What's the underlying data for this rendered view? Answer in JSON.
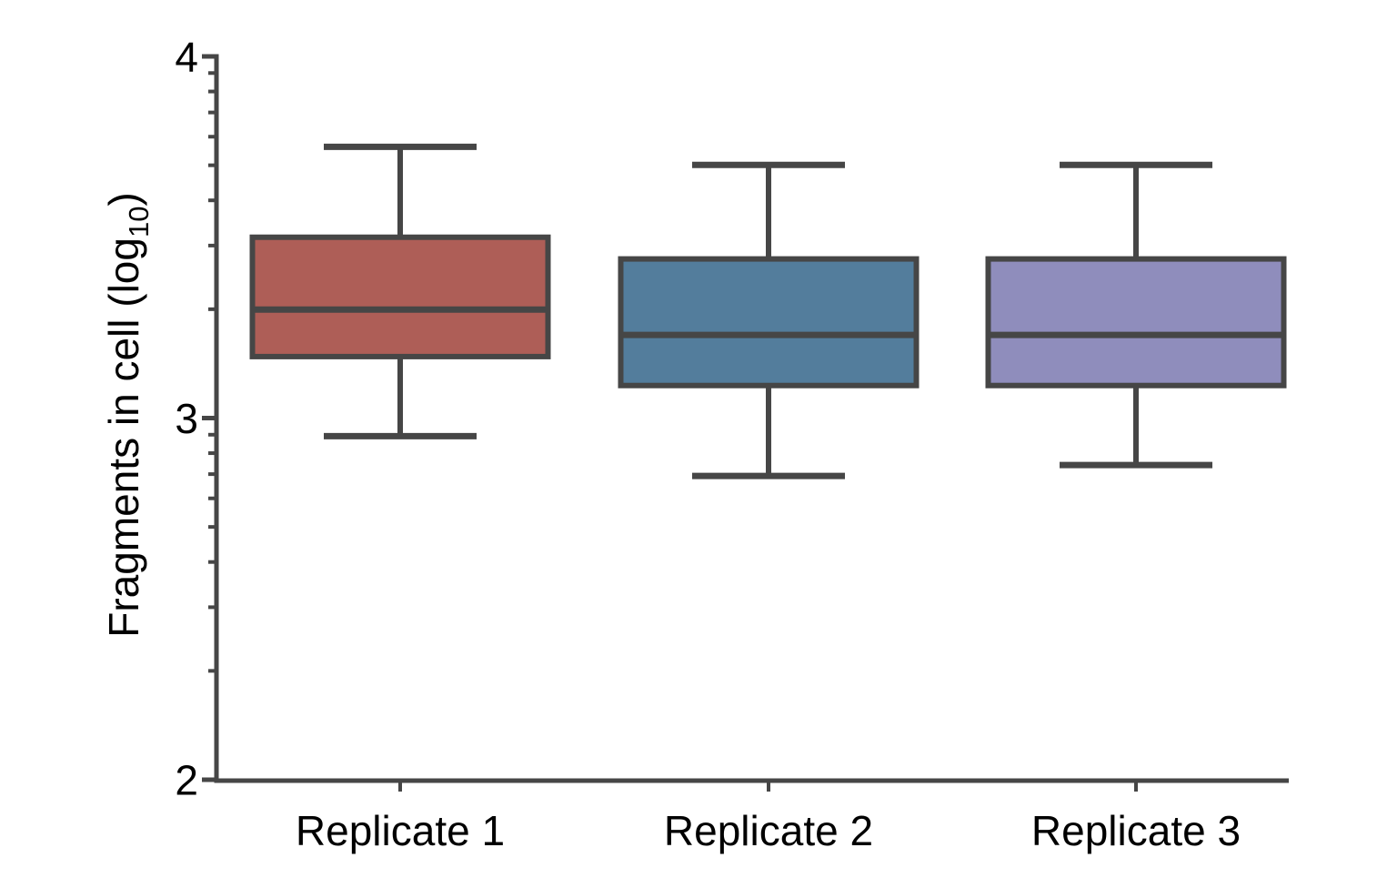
{
  "figure": {
    "background": "#ffffff",
    "axis_color": "#464646",
    "text_color": "#000000"
  },
  "chart_data": {
    "type": "boxplot",
    "title": "",
    "xlabel": "",
    "ylabel": "Fragments in cell (log10)",
    "ylabel_parts": {
      "main": "Fragments in cell (log",
      "subscript": "10",
      "suffix": ")"
    },
    "yscale": "log10",
    "ylim": [
      2,
      4
    ],
    "grid": false,
    "legend": false,
    "ytick_values": [
      4,
      3,
      2
    ],
    "ytick_labels": [
      "4",
      "3",
      "2"
    ],
    "yminor_tick_values": [
      3.954,
      3.903,
      3.845,
      3.778,
      3.699,
      3.602,
      3.477,
      3.301,
      2.954,
      2.903,
      2.845,
      2.778,
      2.699,
      2.602,
      2.477,
      2.301
    ],
    "categories": [
      "Replicate 1",
      "Replicate 2",
      "Replicate 3"
    ],
    "series": [
      {
        "name": "Replicate 1",
        "color": "#ae5e57",
        "whisker_low": 2.95,
        "q1": 3.17,
        "median": 3.3,
        "q3": 3.5,
        "whisker_high": 3.75
      },
      {
        "name": "Replicate 2",
        "color": "#537d9c",
        "whisker_low": 2.84,
        "q1": 3.09,
        "median": 3.23,
        "q3": 3.44,
        "whisker_high": 3.7
      },
      {
        "name": "Replicate 3",
        "color": "#8f8dbc",
        "whisker_low": 2.87,
        "q1": 3.09,
        "median": 3.23,
        "q3": 3.44,
        "whisker_high": 3.7
      }
    ]
  }
}
